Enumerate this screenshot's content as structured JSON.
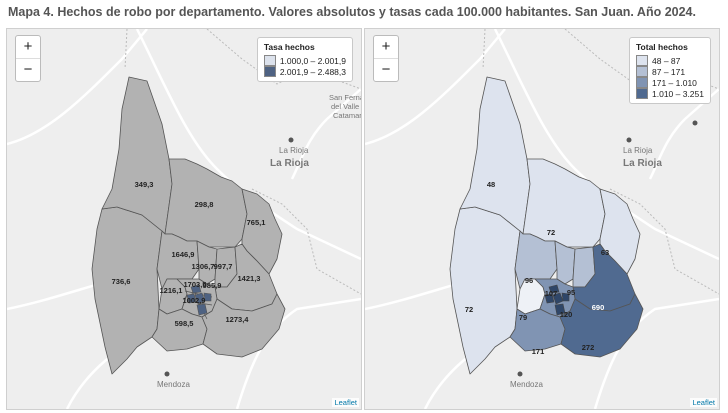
{
  "title": "Mapa 4. Hechos de robo por departamento. Valores absolutos y tasas cada 100.000 habitantes. San Juan. Año 2024.",
  "zoom": {
    "plus": "+",
    "minus": "−"
  },
  "attribution": "Leaflet",
  "basemap_places": {
    "la_rioja_city": "La Rioja",
    "la_rioja_province": "La Rioja",
    "mendoza": "Mendoza",
    "catamarca_1": "San Ferna",
    "catamarca_2": "del Valle",
    "catamarca_3": "Catamar"
  },
  "colors": {
    "base_fill": "#b2b2b2",
    "rate_high": "#4e6282",
    "border": "#555555",
    "abs_1": "#dde3ee",
    "abs_2": "#b4c0d4",
    "abs_3": "#8094b3",
    "abs_4": "#506a90"
  },
  "left_map": {
    "legend": {
      "title": "Tasa hechos",
      "items": [
        {
          "label": "1.000,0 – 2.001,9",
          "color": "#dce2ec"
        },
        {
          "label": "2.001,9 – 2.488,3",
          "color": "#4e6282"
        }
      ]
    },
    "labels": {
      "iglesia": "349,3",
      "jachal": "298,8",
      "valle_fertil": "765,1",
      "calingasta": "736,6",
      "ullum": "1646,9",
      "angaco": "1306,7",
      "san_martin": "997,7",
      "caucete": "1421,3",
      "zonda": "1216,1",
      "chimbas": "1703,5",
      "rawson": "1002,9",
      "nueve_julio": "985,9",
      "sarmiento": "598,5",
      "veinticinco_mayo": "1273,4"
    }
  },
  "right_map": {
    "legend": {
      "title": "Total hechos",
      "items": [
        {
          "label": "48 – 87",
          "color": "#dde3ee"
        },
        {
          "label": "87 – 171",
          "color": "#b4c0d4"
        },
        {
          "label": "171 – 1.010",
          "color": "#8094b3"
        },
        {
          "label": "1.010 – 3.251",
          "color": "#506a90"
        }
      ]
    },
    "labels": {
      "iglesia": "48",
      "jachal": "72",
      "valle_fertil": "63",
      "calingasta": "72",
      "ullum": "96",
      "angaco": "107",
      "san_martin": "95",
      "caucete": "690",
      "zonda": "79",
      "rawson": "120",
      "sarmiento": "171",
      "veinticinco_mayo": "272"
    }
  }
}
